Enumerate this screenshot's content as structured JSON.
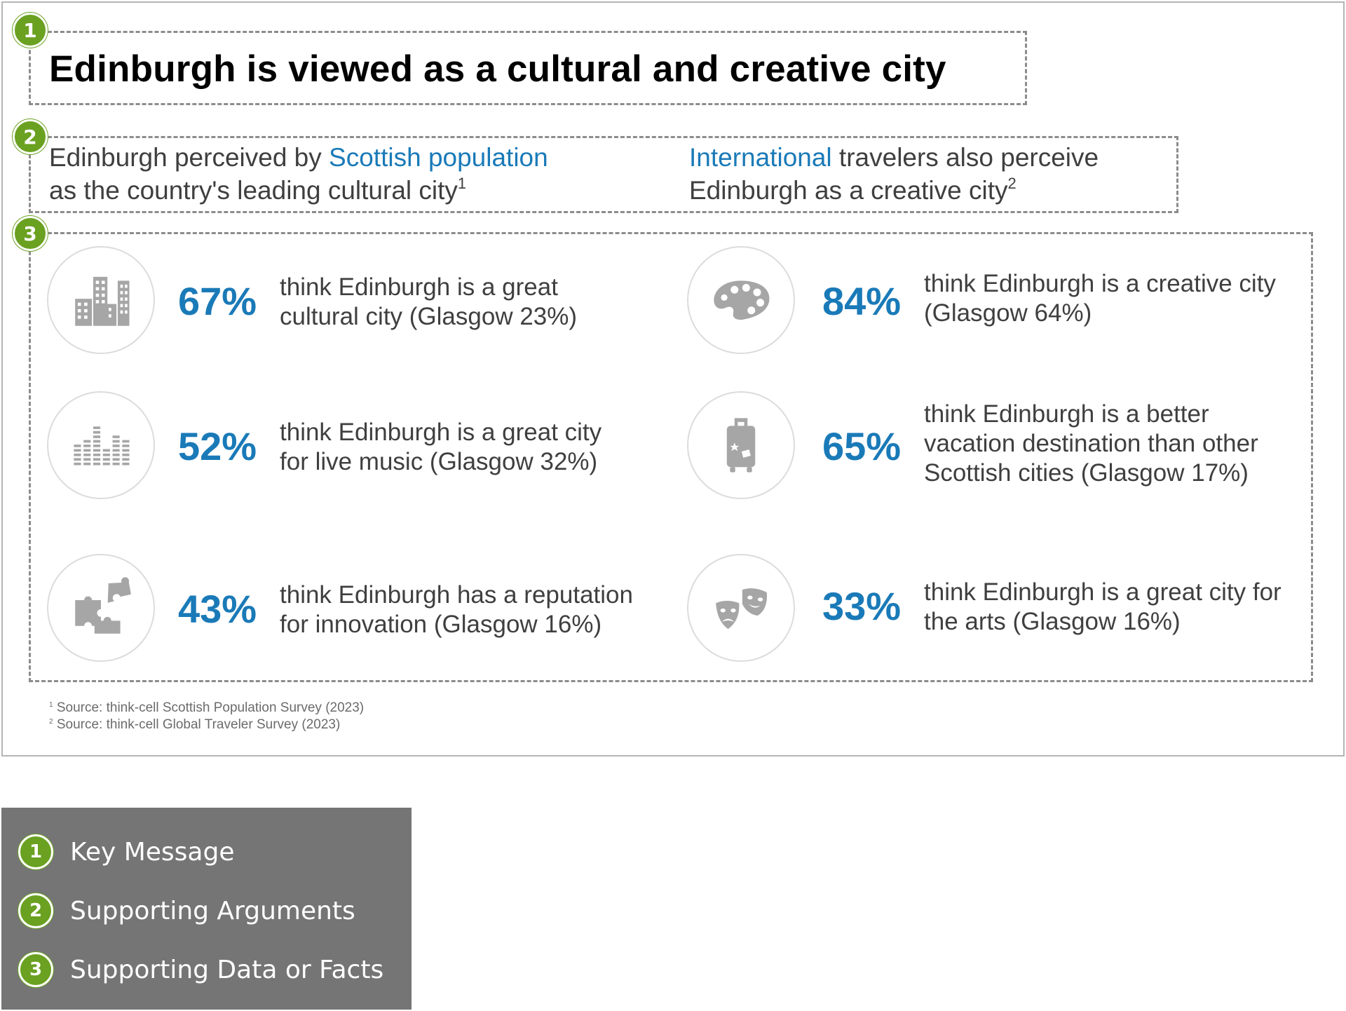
{
  "slide": {
    "badges": [
      "1",
      "2",
      "3"
    ],
    "title": "Edinburgh is viewed as a cultural and creative city",
    "arguments": {
      "left": {
        "pre": "Edinburgh perceived by ",
        "accent": "Scottish population",
        "line2": "as the country's leading cultural city",
        "sup": "1"
      },
      "right": {
        "accent": "International",
        "post": " travelers also perceive",
        "line2": "Edinburgh as a creative city",
        "sup": "2"
      }
    },
    "facts": [
      {
        "icon": "city-buildings-icon",
        "percent": "67%",
        "lines": [
          "think Edinburgh is a great",
          "cultural city (Glasgow 23%)"
        ]
      },
      {
        "icon": "equalizer-bars-icon",
        "percent": "52%",
        "lines": [
          "think Edinburgh is a great city",
          "for live music (Glasgow 32%)"
        ]
      },
      {
        "icon": "puzzle-pieces-icon",
        "percent": "43%",
        "lines": [
          "think Edinburgh has a reputation",
          "for innovation (Glasgow 16%)"
        ]
      },
      {
        "icon": "paint-palette-icon",
        "percent": "84%",
        "lines": [
          "think Edinburgh is a creative city",
          "(Glasgow 64%)"
        ]
      },
      {
        "icon": "suitcase-icon",
        "percent": "65%",
        "lines": [
          "think Edinburgh is a better",
          "vacation destination than other",
          "Scottish cities (Glasgow 17%)"
        ]
      },
      {
        "icon": "theater-masks-icon",
        "percent": "33%",
        "lines": [
          "think Edinburgh is a great city for",
          "the arts (Glasgow 16%)"
        ]
      }
    ],
    "footnotes": [
      {
        "sup": "1",
        "text": "Source: think-cell Scottish Population Survey (2023)"
      },
      {
        "sup": "2",
        "text": "Source: think-cell Global Traveler Survey (2023)"
      }
    ]
  },
  "legend": {
    "items": [
      {
        "number": "1",
        "label": "Key Message"
      },
      {
        "number": "2",
        "label": "Supporting Arguments"
      },
      {
        "number": "3",
        "label": "Supporting Data or Facts"
      }
    ]
  },
  "colors": {
    "accent_blue": "#1a7ab8",
    "badge_green": "#6aa121",
    "legend_bg": "#757575",
    "icon_gray": "#a6a6a6"
  }
}
